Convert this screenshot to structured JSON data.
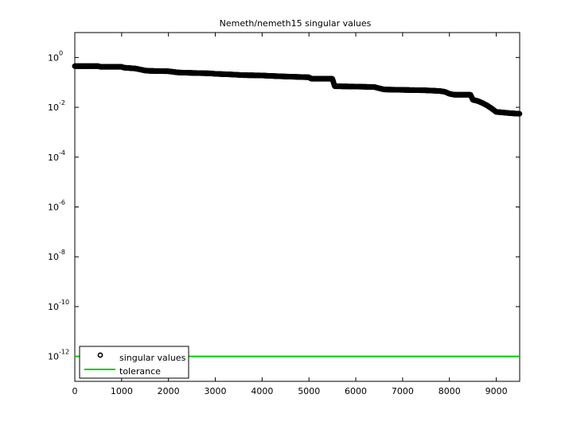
{
  "chart_data": {
    "type": "scatter",
    "title": "Nemeth/nemeth15 singular values",
    "xlabel": "",
    "ylabel": "",
    "xlim": [
      0,
      9500
    ],
    "ylim": [
      1e-13,
      10.0
    ],
    "yscale": "log",
    "grid": false,
    "legend_position": "bottom-left",
    "x_ticks": [
      "0",
      "1000",
      "2000",
      "3000",
      "4000",
      "5000",
      "6000",
      "7000",
      "8000",
      "9000"
    ],
    "y_ticks": [
      {
        "base": "10",
        "exp": "0",
        "value": 1
      },
      {
        "base": "10",
        "exp": "-2",
        "value": 0.01
      },
      {
        "base": "10",
        "exp": "-4",
        "value": 0.0001
      },
      {
        "base": "10",
        "exp": "-6",
        "value": 1e-06
      },
      {
        "base": "10",
        "exp": "-8",
        "value": 1e-08
      },
      {
        "base": "10",
        "exp": "-10",
        "value": 1e-10
      },
      {
        "base": "10",
        "exp": "-12",
        "value": 1e-12
      }
    ],
    "series": [
      {
        "name": "singular values",
        "marker": "circle",
        "color": "#000000",
        "x": [
          0,
          500,
          550,
          1000,
          1050,
          1300,
          1500,
          1600,
          2000,
          2200,
          2500,
          2900,
          3000,
          3300,
          3500,
          3600,
          4000,
          4100,
          4400,
          4600,
          5000,
          5050,
          5500,
          5550,
          6000,
          6400,
          6500,
          6600,
          7000,
          7500,
          7800,
          7900,
          8000,
          8100,
          8450,
          8500,
          8600,
          8700,
          8800,
          8900,
          9000,
          9100,
          9300,
          9500
        ],
        "y": [
          0.45,
          0.45,
          0.42,
          0.42,
          0.39,
          0.36,
          0.3,
          0.29,
          0.28,
          0.25,
          0.24,
          0.23,
          0.22,
          0.21,
          0.2,
          0.195,
          0.19,
          0.185,
          0.175,
          0.17,
          0.16,
          0.14,
          0.14,
          0.07,
          0.068,
          0.065,
          0.058,
          0.052,
          0.05,
          0.048,
          0.045,
          0.042,
          0.035,
          0.032,
          0.032,
          0.02,
          0.018,
          0.015,
          0.012,
          0.009,
          0.0065,
          0.0063,
          0.0058,
          0.0055
        ]
      },
      {
        "name": "tolerance",
        "type": "line",
        "color": "#00cc00",
        "x": [
          0,
          9500
        ],
        "y": [
          1e-12,
          1e-12
        ]
      }
    ]
  }
}
